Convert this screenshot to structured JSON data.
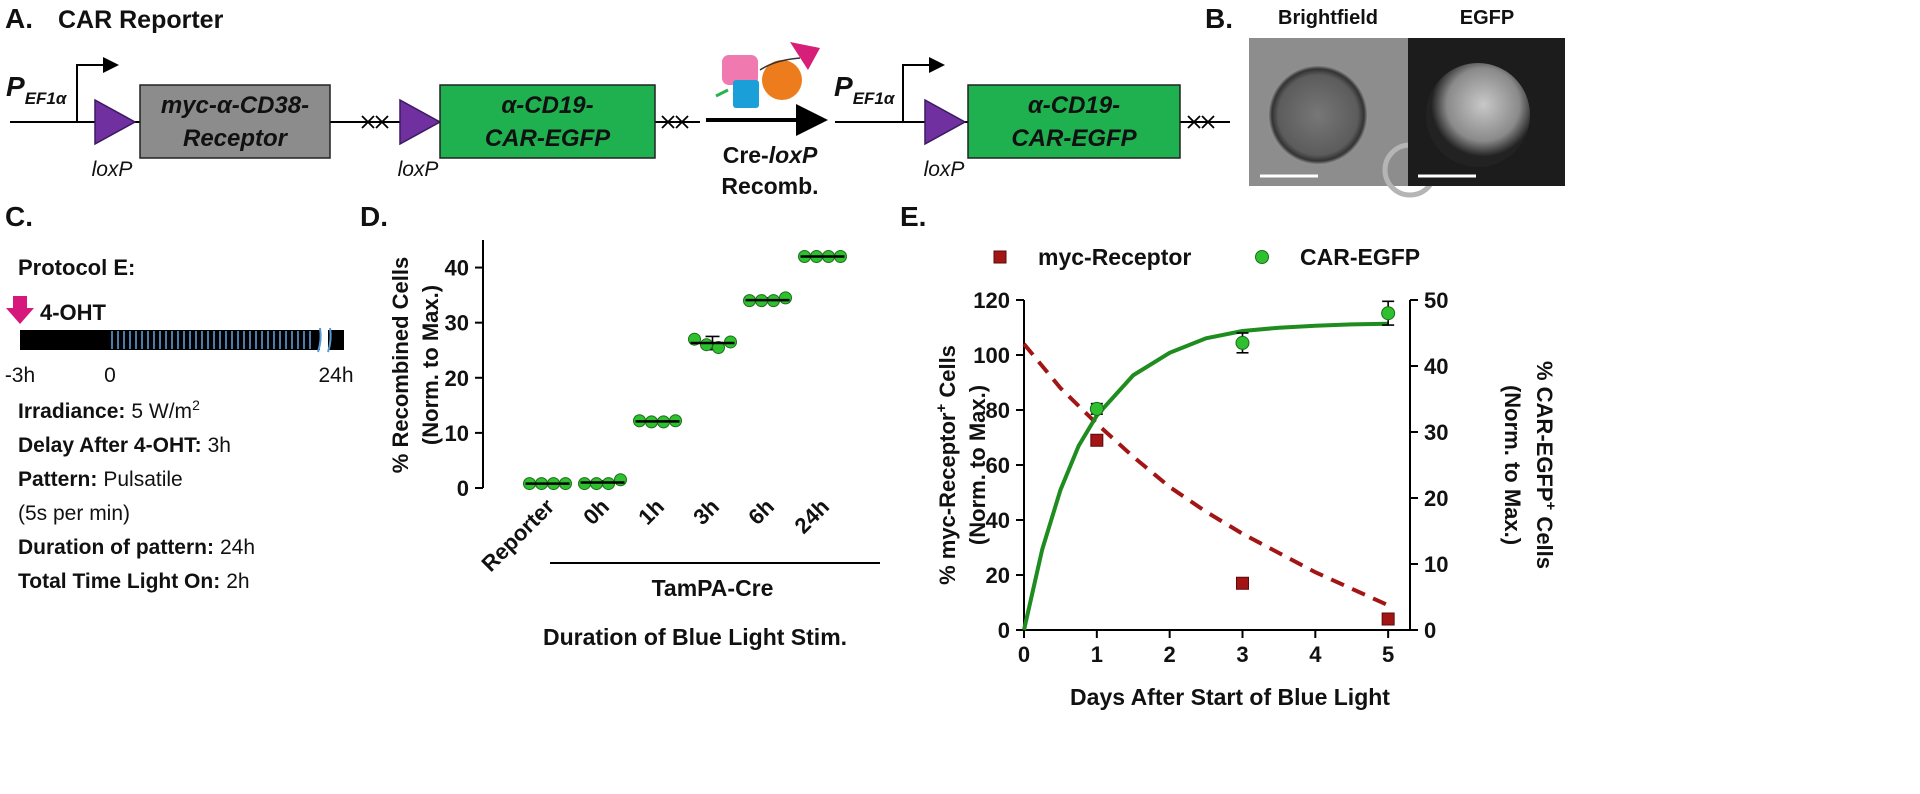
{
  "panel_a": {
    "label": "A.",
    "title": "CAR Reporter",
    "left": {
      "promoter": "P",
      "promoter_sub": "EF1α",
      "loxp": [
        "loxP",
        "loxP"
      ],
      "receptor": [
        "myc-α-CD38-",
        "Receptor"
      ],
      "car": [
        "α-CD19-",
        "CAR-EGFP"
      ]
    },
    "recombination": [
      "Cre-",
      "loxP",
      "Recomb."
    ],
    "right": {
      "promoter": "P",
      "promoter_sub": "EF1α",
      "loxp": "loxP",
      "car": [
        "α-CD19-",
        "CAR-EGFP"
      ]
    }
  },
  "panel_b": {
    "label": "B.",
    "images": [
      "Brightfield",
      "EGFP"
    ]
  },
  "panel_c": {
    "label": "C.",
    "protocol": "Protocol E:",
    "drug": "4-OHT",
    "timeline": [
      "-3h",
      "0",
      "24h"
    ],
    "params": [
      {
        "name": "Irradiance:",
        "value": "5 W/m",
        "sup": "2"
      },
      {
        "name": "Delay After 4-OHT:",
        "value": "3h"
      },
      {
        "name": "Pattern:",
        "value": "Pulsatile"
      },
      {
        "value": "(5s per min)"
      },
      {
        "name": "Duration of pattern:",
        "value": "24h"
      },
      {
        "name": "Total Time Light On:",
        "value": "2h"
      }
    ]
  },
  "chart_data": [
    {
      "type": "dot",
      "label": "D.",
      "y_label": [
        "% Recombined Cells",
        "(Norm. to Max.)"
      ],
      "x_label": "Duration of Blue Light Stim.",
      "group_label": "TamPA-Cre",
      "categories": [
        "Reporter",
        "0h",
        "1h",
        "3h",
        "6h",
        "24h"
      ],
      "points": [
        [
          0.8,
          0.8,
          0.8,
          0.8
        ],
        [
          0.8,
          0.8,
          0.8,
          1.5
        ],
        [
          12.2,
          12,
          12,
          12.2
        ],
        [
          27,
          26,
          25.5,
          26.5
        ],
        [
          34,
          34,
          34,
          34.5
        ],
        [
          42,
          42,
          42,
          42
        ]
      ],
      "means": [
        0.8,
        1,
        12.1,
        26.3,
        34.1,
        42
      ],
      "errors": [
        0.1,
        0.3,
        0.2,
        1.2,
        0.4,
        0.2
      ],
      "color": "#2ec02e",
      "ylim": [
        0,
        45
      ],
      "yticks": [
        0,
        10,
        20,
        30,
        40
      ]
    },
    {
      "type": "scatter-fit",
      "label": "E.",
      "x_label": "Days After Start of Blue Light",
      "y_label": [
        "% myc-Receptor",
        "+",
        " Cells",
        "(Norm. to Max.)"
      ],
      "y2_label": [
        "% CAR-EGFP",
        "+",
        " Cells",
        "(Norm. to Max.)"
      ],
      "xlim": [
        0,
        5.3
      ],
      "xticks": [
        0,
        1,
        2,
        3,
        4,
        5
      ],
      "ylim": [
        0,
        120
      ],
      "yticks": [
        0,
        20,
        40,
        60,
        80,
        100,
        120
      ],
      "y2lim": [
        0,
        50
      ],
      "y2ticks": [
        0,
        10,
        20,
        30,
        40,
        50
      ],
      "series": [
        {
          "name": "myc-Receptor",
          "color": "#a31515",
          "marker": "square",
          "x": [
            1,
            3,
            5
          ],
          "values": [
            69,
            17,
            4
          ]
        },
        {
          "name": "CAR-EGFP",
          "color": "#2ec02e",
          "marker": "circle",
          "axis": "y2",
          "x": [
            1,
            3,
            5
          ],
          "values": [
            33.5,
            43.5,
            48
          ],
          "errors": [
            0.8,
            1.5,
            1.8
          ]
        }
      ],
      "fits": [
        {
          "color": "#a31515",
          "dash": true,
          "x": [
            0,
            0.5,
            1,
            1.5,
            2,
            2.5,
            3,
            3.5,
            4,
            4.5,
            5
          ],
          "values": [
            104,
            88,
            75,
            63,
            52,
            43,
            35,
            28,
            21,
            15,
            9
          ]
        },
        {
          "color": "#1e8c1e",
          "axis": "y2",
          "x": [
            0,
            0.25,
            0.5,
            0.75,
            1,
            1.5,
            2,
            2.5,
            3,
            3.5,
            4,
            4.5,
            5
          ],
          "values": [
            0,
            12.2,
            21.2,
            27.9,
            32.5,
            38.6,
            42,
            44.2,
            45.3,
            45.8,
            46.1,
            46.3,
            46.4
          ]
        }
      ]
    }
  ]
}
